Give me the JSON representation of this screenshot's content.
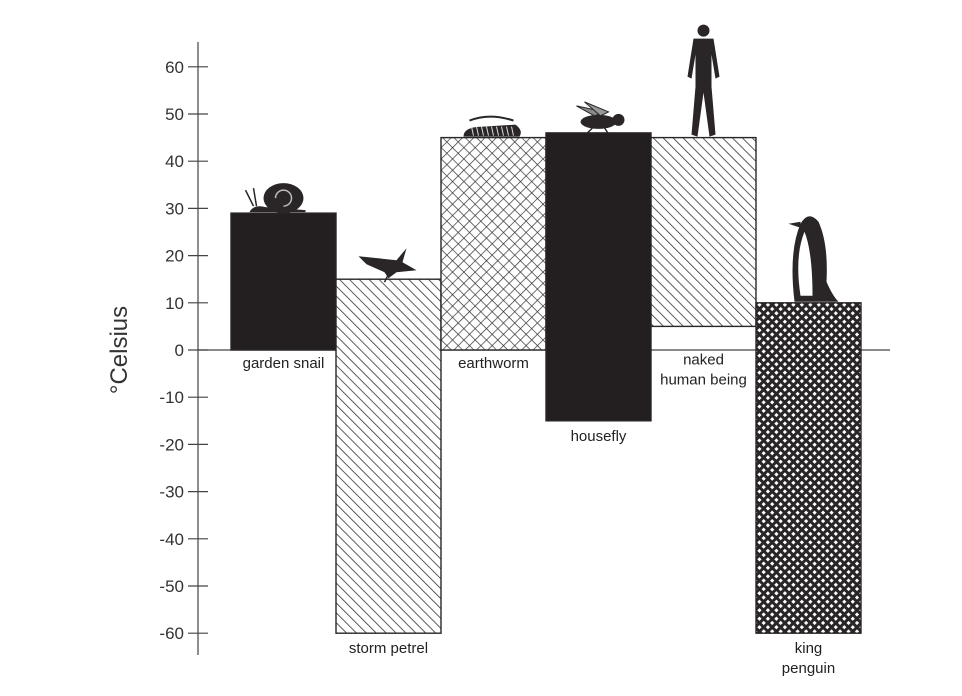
{
  "chart_data": {
    "type": "bar",
    "subtype": "floating-range",
    "ylabel": "°Celsius",
    "ylim": [
      -65,
      65
    ],
    "yticks": [
      "60",
      "50",
      "40",
      "30",
      "20",
      "10",
      "0",
      "-10",
      "-20",
      "-30",
      "-40",
      "-50",
      "-60"
    ],
    "grid": false,
    "categories": [
      {
        "label_lines": [
          "garden snail"
        ],
        "min": 0,
        "max": 29,
        "pattern": "solid-dark",
        "icon": "snail-icon"
      },
      {
        "label_lines": [
          "storm petrel"
        ],
        "min": -60,
        "max": 15,
        "pattern": "diagonal-hatch",
        "icon": "bird-icon"
      },
      {
        "label_lines": [
          "earthworm"
        ],
        "min": 0,
        "max": 45,
        "pattern": "cross-hatch",
        "icon": "worm-icon"
      },
      {
        "label_lines": [
          "housefly"
        ],
        "min": -15,
        "max": 46,
        "pattern": "solid-dark",
        "icon": "fly-icon"
      },
      {
        "label_lines": [
          "naked",
          "human being"
        ],
        "min": 5,
        "max": 45,
        "pattern": "diagonal-hatch",
        "icon": "human-icon"
      },
      {
        "label_lines": [
          "king",
          "penguin"
        ],
        "min": -60,
        "max": 10,
        "pattern": "checker",
        "icon": "penguin-icon"
      }
    ],
    "colors": {
      "dark": "#231f20",
      "ink": "#333333"
    }
  }
}
